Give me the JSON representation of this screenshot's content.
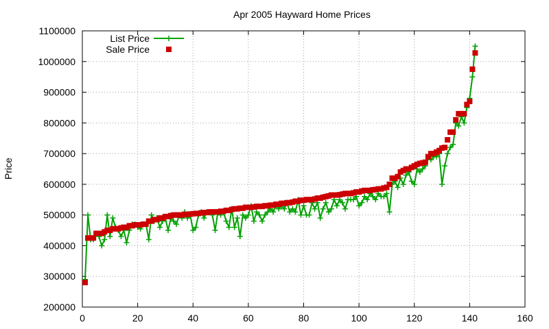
{
  "chart_data": {
    "type": "line",
    "title": "Apr 2005 Hayward Home Prices",
    "xlabel": "",
    "ylabel": "Price",
    "xlim": [
      0,
      160
    ],
    "ylim": [
      200000,
      1100000
    ],
    "x_ticks": [
      0,
      20,
      40,
      60,
      80,
      100,
      120,
      140,
      160
    ],
    "y_ticks": [
      200000,
      300000,
      400000,
      500000,
      600000,
      700000,
      800000,
      900000,
      1000000,
      1100000
    ],
    "x_tick_labels": [
      "0",
      "20",
      "40",
      "60",
      "80",
      "100",
      "120",
      "140",
      "160"
    ],
    "y_tick_labels": [
      "200000",
      "300000",
      "400000",
      "500000",
      "600000",
      "700000",
      "800000",
      "900000",
      "1000000",
      "1100000"
    ],
    "grid": true,
    "legend_position": "top-left",
    "series": [
      {
        "name": "List Price",
        "style": "line+points",
        "marker": "plus",
        "color": "#00a000",
        "values": [
          290000,
          500000,
          420000,
          420000,
          440000,
          430000,
          400000,
          420000,
          500000,
          430000,
          490000,
          460000,
          450000,
          430000,
          450000,
          410000,
          450000,
          470000,
          470000,
          460000,
          455000,
          470000,
          470000,
          420000,
          500000,
          480000,
          490000,
          460000,
          480000,
          490000,
          450000,
          490000,
          480000,
          470000,
          500000,
          490000,
          510000,
          490000,
          500000,
          450000,
          460000,
          500000,
          510000,
          490000,
          510000,
          510000,
          500000,
          450000,
          510000,
          500000,
          510000,
          480000,
          460000,
          520000,
          460000,
          490000,
          430000,
          500000,
          490000,
          500000,
          530000,
          480000,
          510000,
          500000,
          480000,
          500000,
          510000,
          520000,
          510000,
          530000,
          520000,
          530000,
          520000,
          540000,
          510000,
          520000,
          510000,
          550000,
          500000,
          530000,
          500000,
          500000,
          540000,
          520000,
          540000,
          490000,
          520000,
          540000,
          510000,
          520000,
          550000,
          530000,
          550000,
          540000,
          520000,
          550000,
          550000,
          550000,
          560000,
          530000,
          540000,
          560000,
          550000,
          570000,
          560000,
          550000,
          570000,
          560000,
          560000,
          570000,
          510000,
          600000,
          610000,
          590000,
          620000,
          600000,
          630000,
          640000,
          610000,
          600000,
          650000,
          640000,
          650000,
          660000,
          690000,
          680000,
          690000,
          690000,
          700000,
          600000,
          660000,
          700000,
          720000,
          730000,
          800000,
          790000,
          820000,
          800000,
          850000,
          880000,
          950000,
          1050000
        ]
      },
      {
        "name": "Sale Price",
        "style": "points",
        "marker": "square",
        "color": "#cc0000",
        "values": [
          280000,
          425000,
          425000,
          425000,
          440000,
          440000,
          440000,
          445000,
          450000,
          450000,
          455000,
          455000,
          455000,
          458000,
          460000,
          460000,
          465000,
          465000,
          468000,
          468000,
          468000,
          470000,
          470000,
          480000,
          480000,
          485000,
          485000,
          490000,
          490000,
          495000,
          495000,
          498000,
          500000,
          500000,
          500000,
          500000,
          502000,
          502000,
          503000,
          504000,
          505000,
          505000,
          507000,
          508000,
          508000,
          510000,
          510000,
          510000,
          510000,
          512000,
          512000,
          515000,
          515000,
          518000,
          520000,
          520000,
          522000,
          522000,
          525000,
          525000,
          525000,
          526000,
          528000,
          528000,
          528000,
          530000,
          530000,
          532000,
          532000,
          535000,
          535000,
          538000,
          538000,
          540000,
          540000,
          542000,
          545000,
          545000,
          548000,
          548000,
          550000,
          550000,
          550000,
          552000,
          555000,
          555000,
          558000,
          560000,
          562000,
          565000,
          565000,
          565000,
          566000,
          568000,
          570000,
          570000,
          570000,
          572000,
          575000,
          575000,
          578000,
          580000,
          580000,
          580000,
          582000,
          583000,
          585000,
          585000,
          588000,
          590000,
          600000,
          620000,
          620000,
          625000,
          640000,
          645000,
          650000,
          650000,
          655000,
          660000,
          665000,
          668000,
          670000,
          672000,
          690000,
          700000,
          700000,
          705000,
          710000,
          718000,
          720000,
          745000,
          770000,
          770000,
          810000,
          830000,
          830000,
          830000,
          860000,
          870000,
          975000,
          1028000
        ]
      }
    ]
  }
}
